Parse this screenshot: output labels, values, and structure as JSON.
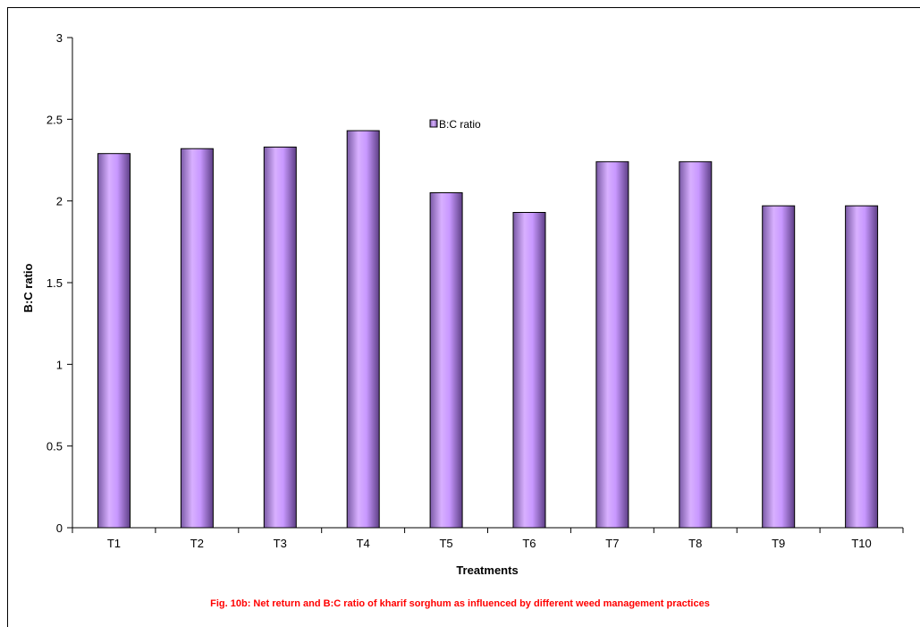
{
  "chart_data": {
    "type": "bar",
    "categories": [
      "T1",
      "T2",
      "T3",
      "T4",
      "T5",
      "T6",
      "T7",
      "T8",
      "T9",
      "T10"
    ],
    "series": [
      {
        "name": "B:C ratio",
        "values": [
          2.29,
          2.32,
          2.33,
          2.43,
          2.05,
          1.93,
          2.24,
          2.24,
          1.97,
          1.97
        ]
      }
    ],
    "xlabel": "Treatments",
    "ylabel": "B:C ratio",
    "ylim": [
      0,
      3
    ],
    "yticks": [
      "0",
      "0.5",
      "1",
      "1.5",
      "2",
      "2.5",
      "3"
    ],
    "legend_position": "top-center",
    "grid": false,
    "bar_color": "#cc99ff"
  },
  "caption": "Fig. 10b: Net return and B:C ratio of kharif sorghum as influenced by different weed management practices"
}
